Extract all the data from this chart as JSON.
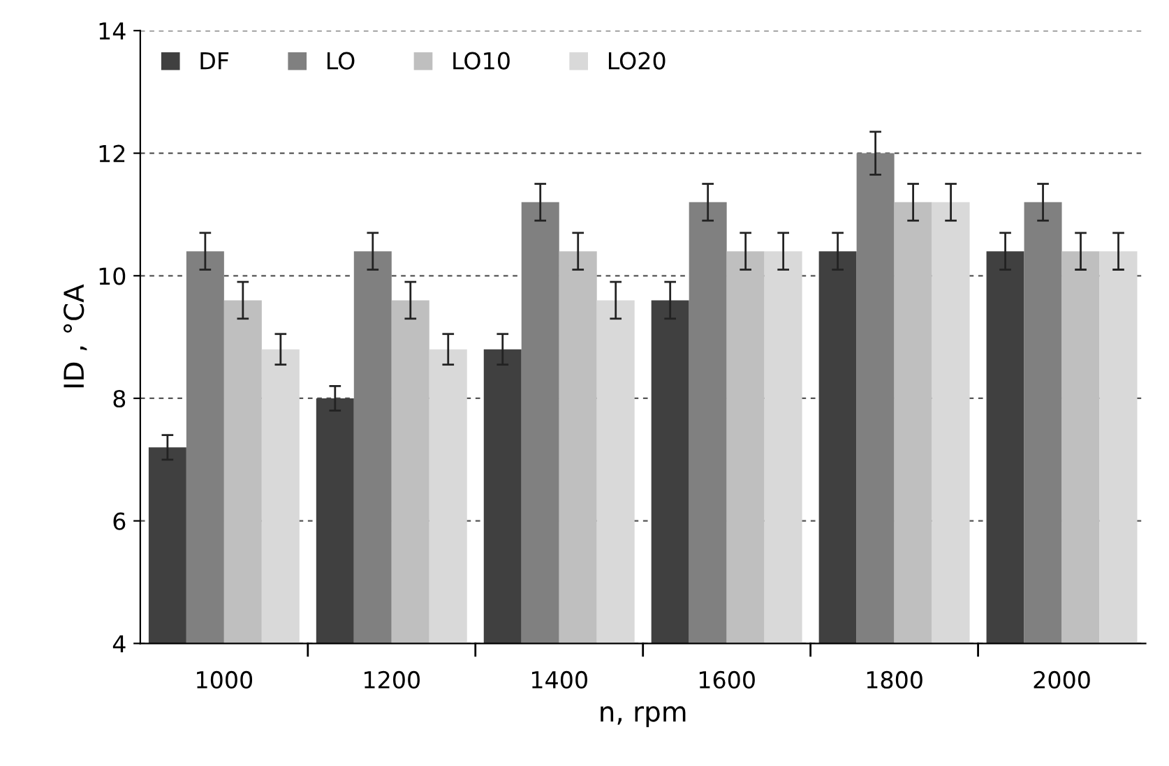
{
  "chart_data": {
    "type": "bar",
    "xlabel": "n, rpm",
    "ylabel": "ID , °CA",
    "categories": [
      "1000",
      "1200",
      "1400",
      "1600",
      "1800",
      "2000"
    ],
    "series": [
      {
        "name": "DF",
        "color": "#404040",
        "values": [
          7.2,
          8.0,
          8.8,
          9.6,
          10.4,
          10.4
        ],
        "errors": [
          0.2,
          0.2,
          0.25,
          0.3,
          0.3,
          0.3
        ]
      },
      {
        "name": "LO",
        "color": "#808080",
        "values": [
          10.4,
          10.4,
          11.2,
          11.2,
          12.0,
          11.2
        ],
        "errors": [
          0.3,
          0.3,
          0.3,
          0.3,
          0.35,
          0.3
        ]
      },
      {
        "name": "LO10",
        "color": "#bfbfbf",
        "values": [
          9.6,
          9.6,
          10.4,
          10.4,
          11.2,
          10.4
        ],
        "errors": [
          0.3,
          0.3,
          0.3,
          0.3,
          0.3,
          0.3
        ]
      },
      {
        "name": "LO20",
        "color": "#d9d9d9",
        "values": [
          8.8,
          8.8,
          9.6,
          10.4,
          11.2,
          10.4
        ],
        "errors": [
          0.25,
          0.25,
          0.3,
          0.3,
          0.3,
          0.3
        ]
      }
    ],
    "ylim": [
      4,
      14
    ],
    "yticks": [
      4,
      6,
      8,
      10,
      12,
      14
    ],
    "grid": "y",
    "legend": "top left"
  }
}
